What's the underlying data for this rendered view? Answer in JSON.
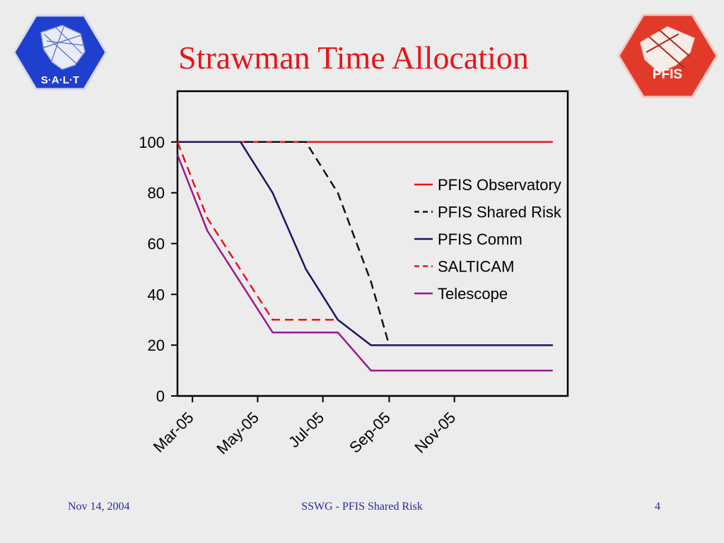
{
  "slide": {
    "title": "Strawman Time Allocation",
    "logos": {
      "left_text": "S·A·L·T",
      "right_text": "PFIS"
    },
    "footer": {
      "date": "Nov 14, 2004",
      "center": "SSWG - PFIS Shared Risk",
      "page": "4"
    }
  },
  "chart_data": {
    "type": "line",
    "title": "",
    "xlabel": "",
    "ylabel": "",
    "ylim": [
      0,
      120
    ],
    "yticks": [
      0,
      20,
      40,
      60,
      80,
      100
    ],
    "xlim": [
      "2005-02-15",
      "2006-02-15"
    ],
    "xtick_labels": [
      "Mar-05",
      "May-05",
      "Jul-05",
      "Sep-05",
      "Nov-05"
    ],
    "xtick_dates": [
      "2005-03-01",
      "2005-05-01",
      "2005-07-01",
      "2005-09-01",
      "2005-11-01"
    ],
    "grid": false,
    "legend_position": "right",
    "series": [
      {
        "name": "PFIS Observatory",
        "color": "#e8141b",
        "dash": "solid",
        "x": [
          "2005-02-15",
          "2006-02-01"
        ],
        "y": [
          100,
          100
        ]
      },
      {
        "name": "PFIS Shared Risk",
        "color": "#111111",
        "dash": "dashed",
        "x": [
          "2005-02-15",
          "2005-06-15",
          "2005-07-15",
          "2005-08-15",
          "2005-09-01",
          "2006-02-01"
        ],
        "y": [
          100,
          100,
          80,
          45,
          20,
          20
        ]
      },
      {
        "name": "PFIS Comm",
        "color": "#1c1464",
        "dash": "solid",
        "x": [
          "2005-02-15",
          "2005-04-15",
          "2005-05-15",
          "2005-06-15",
          "2005-07-15",
          "2005-08-15",
          "2006-02-01"
        ],
        "y": [
          100,
          100,
          80,
          50,
          30,
          20,
          20
        ]
      },
      {
        "name": "SALTICAM",
        "color": "#e8141b",
        "dash": "dashed",
        "x": [
          "2005-02-15",
          "2005-03-15",
          "2005-05-15",
          "2005-06-15",
          "2005-07-15"
        ],
        "y": [
          100,
          70,
          30,
          30,
          30
        ]
      },
      {
        "name": "Telescope",
        "color": "#9a1a8c",
        "dash": "solid",
        "x": [
          "2005-02-15",
          "2005-03-15",
          "2005-05-15",
          "2005-06-15",
          "2005-07-15",
          "2005-08-15",
          "2006-02-01"
        ],
        "y": [
          95,
          65,
          25,
          25,
          25,
          10,
          10
        ]
      }
    ]
  }
}
